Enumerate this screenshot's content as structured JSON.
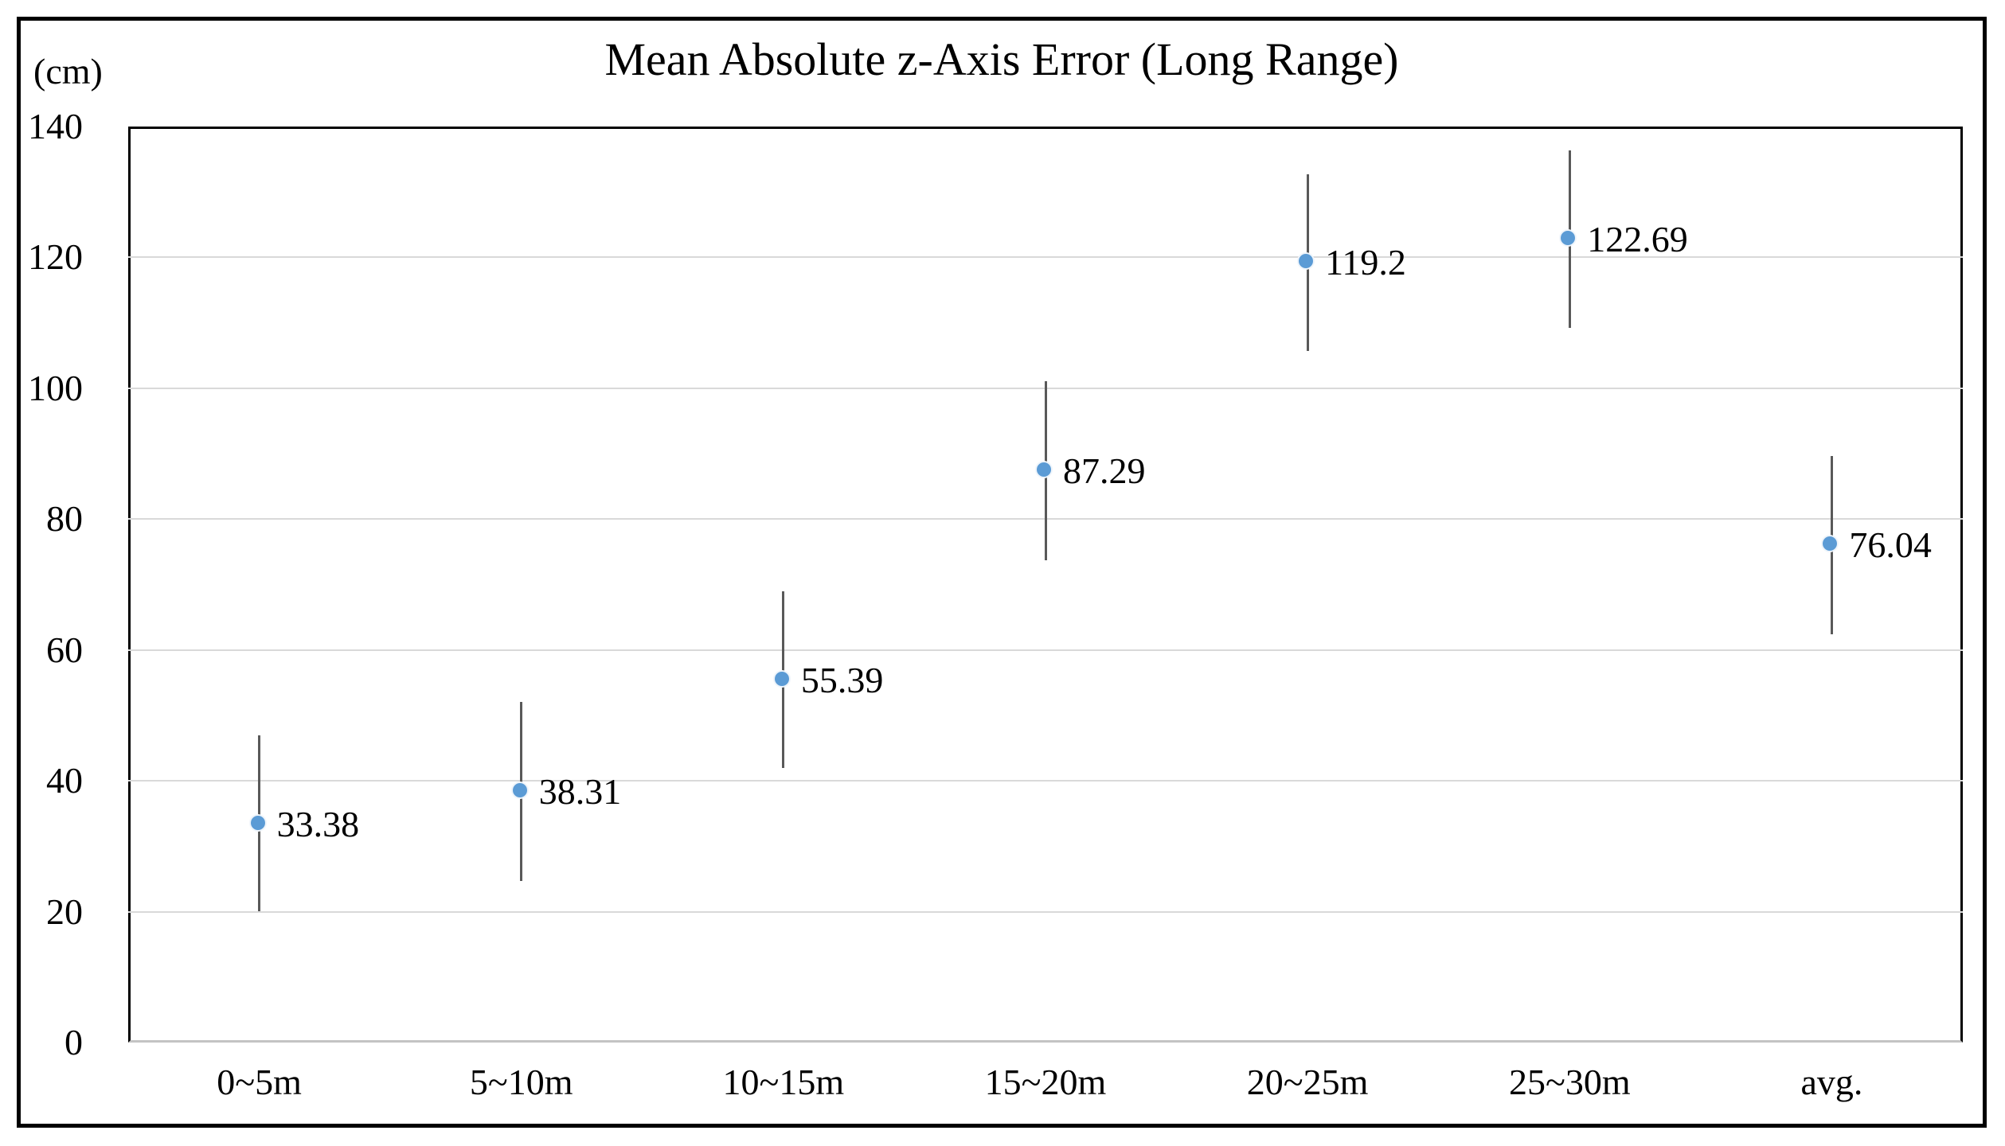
{
  "chart_data": {
    "type": "scatter",
    "title": "Mean Absolute z-Axis Error (Long Range)",
    "unit_label": "(cm)",
    "xlabel": "",
    "ylabel": "(cm)",
    "categories": [
      "0~5m",
      "5~10m",
      "10~15m",
      "15~20m",
      "20~25m",
      "25~30m",
      "avg."
    ],
    "series": [
      {
        "name": "mean-absolute-z-axis-error",
        "values": [
          33.38,
          38.31,
          55.39,
          87.29,
          119.2,
          122.69,
          76.04
        ],
        "point_labels": [
          "33.38",
          "38.31",
          "55.39",
          "87.29",
          "119.2",
          "122.69",
          "76.04"
        ],
        "error_low": [
          20.1,
          24.7,
          42.0,
          73.7,
          105.7,
          109.2,
          62.4
        ],
        "error_high": [
          46.9,
          52.0,
          69.0,
          101.1,
          132.7,
          136.4,
          89.7
        ]
      }
    ],
    "ylim": [
      0,
      140
    ],
    "yticks": [
      0,
      20,
      40,
      60,
      80,
      100,
      120,
      140
    ],
    "grid": true,
    "legend_position": "none",
    "colors": {
      "marker": "#5b9bd5",
      "error_bar": "#595959",
      "gridline": "#d9d9d9",
      "plot_border": "#000000",
      "bottom_axis_line": "#c3c3c3",
      "text": "#000000",
      "background": "#ffffff"
    }
  }
}
